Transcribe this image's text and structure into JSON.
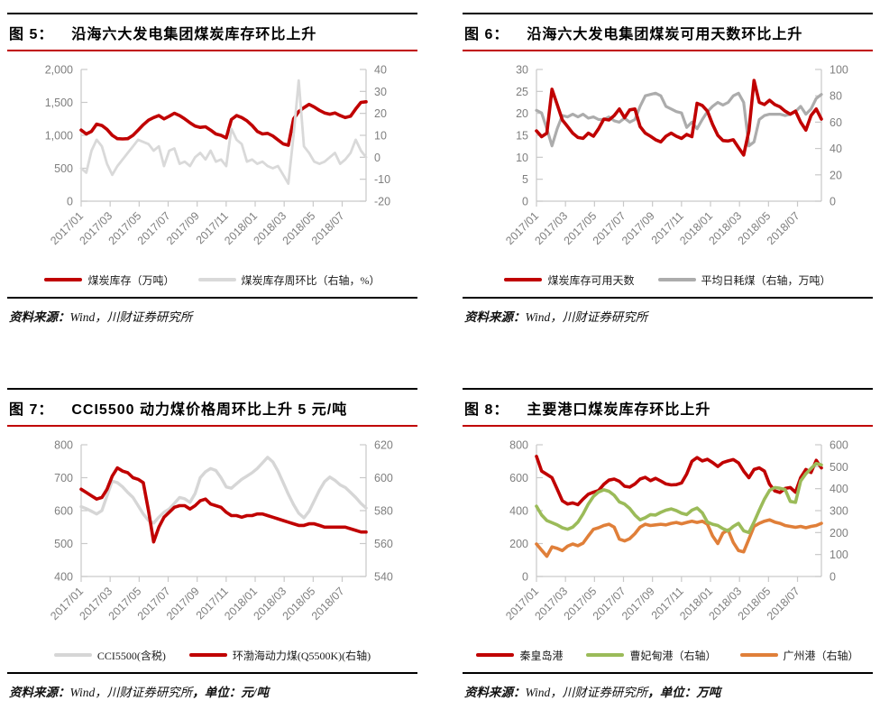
{
  "style": {
    "accent_red": "#c00000",
    "axis_color": "#c9c9c9",
    "tick_text_color": "#7f7f7f",
    "rule_black": "#000000"
  },
  "chart_data": [
    {
      "type": "line",
      "figure_label": "图 5：",
      "title": "沿海六大发电集团煤炭库存环比上升",
      "source_label": "资料来源：",
      "source_text": "Wind，川财证券研究所",
      "unit_text": "",
      "x_ticks": [
        "2017/01",
        "2017/03",
        "2017/05",
        "2017/07",
        "2017/09",
        "2017/11",
        "2018/01",
        "2018/03",
        "2018/05",
        "2018/07"
      ],
      "left_axis": {
        "min": 0,
        "max": 2000,
        "tick_labels": [
          "0",
          "500",
          "1,000",
          "1,500",
          "2,000"
        ]
      },
      "right_axis": {
        "min": -20,
        "max": 40,
        "tick_labels": [
          "-20",
          "-10",
          "0",
          "10",
          "20",
          "30",
          "40"
        ]
      },
      "draw_order": [
        0,
        1
      ],
      "series": [
        {
          "name": "煤炭库存（万吨）",
          "axis": "left",
          "color": "#c00000",
          "width": 3.6,
          "values": [
            1080,
            1020,
            1060,
            1170,
            1150,
            1090,
            1000,
            950,
            945,
            950,
            1000,
            1080,
            1160,
            1230,
            1270,
            1300,
            1250,
            1290,
            1335,
            1300,
            1250,
            1190,
            1140,
            1120,
            1130,
            1080,
            1020,
            1000,
            960,
            1240,
            1300,
            1270,
            1220,
            1150,
            1060,
            1020,
            1030,
            990,
            930,
            870,
            850,
            1250,
            1360,
            1420,
            1470,
            1430,
            1380,
            1340,
            1320,
            1340,
            1300,
            1270,
            1290,
            1400,
            1500,
            1510
          ]
        },
        {
          "name": "煤炭库存周环比（右轴，%）",
          "axis": "right",
          "color": "#d9d9d9",
          "width": 2.8,
          "values": [
            -5,
            -7,
            3,
            8,
            5,
            -3,
            -8,
            -4,
            -1,
            2,
            5,
            8,
            7,
            6,
            3,
            5,
            -4,
            3,
            4,
            -3,
            -2,
            -4,
            0,
            2,
            -1,
            3,
            -2,
            -1,
            -4,
            13,
            8,
            6,
            -2,
            -1,
            -3,
            -2,
            -4,
            -5,
            -4,
            -8,
            -12,
            10,
            35,
            5,
            2,
            -2,
            -3,
            -2,
            0,
            2,
            -3,
            -1,
            2,
            8,
            3,
            0
          ]
        }
      ]
    },
    {
      "type": "line",
      "figure_label": "图 6：",
      "title": "沿海六大发电集团煤炭可用天数环比上升",
      "source_label": "资料来源：",
      "source_text": "Wind，川财证券研究所",
      "unit_text": "",
      "x_ticks": [
        "2017/01",
        "2017/03",
        "2017/05",
        "2017/07",
        "2017/09",
        "2017/11",
        "2018/01",
        "2018/03",
        "2018/05",
        "2018/07"
      ],
      "left_axis": {
        "min": 0,
        "max": 30,
        "tick_labels": [
          "0",
          "5",
          "10",
          "15",
          "20",
          "25",
          "30"
        ]
      },
      "right_axis": {
        "min": 0,
        "max": 100,
        "tick_labels": [
          "0",
          "20",
          "40",
          "60",
          "80",
          "100"
        ]
      },
      "draw_order": [
        1,
        0
      ],
      "series": [
        {
          "name": "煤炭库存可用天数",
          "axis": "left",
          "color": "#c00000",
          "width": 3.6,
          "values": [
            16,
            14.7,
            15.5,
            25.5,
            22,
            18.5,
            17,
            15.5,
            14.5,
            14.3,
            15.5,
            14.8,
            16.5,
            18.7,
            18.5,
            19.5,
            21,
            19,
            20.8,
            21,
            17,
            15.5,
            14.8,
            14,
            13.5,
            14.8,
            15.5,
            14.8,
            14.3,
            15.2,
            14.7,
            22.3,
            21.8,
            20.5,
            17.5,
            15,
            13.8,
            13.7,
            14,
            12.2,
            10.5,
            16,
            27.5,
            22.5,
            22,
            23,
            22,
            21.5,
            20.5,
            19.8,
            20.5,
            18,
            16.2,
            19.5,
            21,
            18.7
          ]
        },
        {
          "name": "平均日耗煤（右轴，万吨）",
          "axis": "right",
          "color": "#acacac",
          "width": 3.2,
          "values": [
            69,
            67,
            55,
            42,
            55,
            65,
            64,
            66,
            64,
            66,
            63,
            64,
            62,
            62,
            64,
            61,
            60,
            63,
            60,
            62,
            72,
            80,
            81,
            82,
            80,
            72,
            70,
            68,
            67,
            56,
            60,
            55,
            62,
            68,
            72,
            75,
            73,
            75,
            80,
            82,
            75,
            42,
            45,
            62,
            65,
            66,
            66,
            66,
            65,
            66,
            68,
            72,
            66,
            70,
            78,
            81
          ]
        }
      ]
    },
    {
      "type": "line",
      "figure_label": "图 7：",
      "title": "CCI5500 动力煤价格周环比上升 5 元/吨",
      "source_label": "资料来源：",
      "source_text": "Wind，川财证券研究所",
      "unit_text": "，单位：元/吨",
      "x_ticks": [
        "2017/01",
        "2017/03",
        "2017/05",
        "2017/07",
        "2017/09",
        "2017/11",
        "2018/01",
        "2018/03",
        "2018/05",
        "2018/07"
      ],
      "left_axis": {
        "min": 400,
        "max": 800,
        "tick_labels": [
          "400",
          "500",
          "600",
          "700",
          "800"
        ]
      },
      "right_axis": {
        "min": 540,
        "max": 620,
        "tick_labels": [
          "540",
          "560",
          "580",
          "600",
          "620"
        ]
      },
      "draw_order": [
        0,
        1
      ],
      "series": [
        {
          "name": "CCI5500(含税)",
          "axis": "left",
          "color": "#d6d6d6",
          "width": 3.4,
          "values": [
            612,
            606,
            598,
            590,
            600,
            645,
            690,
            685,
            672,
            655,
            640,
            615,
            590,
            570,
            562,
            580,
            595,
            605,
            622,
            640,
            636,
            625,
            652,
            700,
            718,
            728,
            722,
            700,
            672,
            668,
            682,
            695,
            705,
            715,
            728,
            745,
            762,
            748,
            720,
            685,
            650,
            618,
            592,
            578,
            598,
            630,
            662,
            688,
            702,
            692,
            678,
            670,
            655,
            640,
            622,
            608
          ]
        },
        {
          "name": "环渤海动力煤(Q5500K)(右轴)",
          "axis": "right",
          "color": "#c00000",
          "width": 3.6,
          "values": [
            593,
            591,
            589,
            587,
            588,
            593,
            601,
            606,
            604,
            603,
            600,
            599,
            597,
            580,
            561,
            570,
            576,
            579,
            582,
            583,
            583,
            581,
            583,
            586,
            587,
            584,
            583,
            582,
            579,
            577,
            577,
            576,
            577,
            577,
            578,
            578,
            577,
            576,
            575,
            574,
            573,
            572,
            571,
            571,
            572,
            572,
            571,
            570,
            570,
            570,
            570,
            570,
            569,
            568,
            567,
            567
          ]
        }
      ]
    },
    {
      "type": "line",
      "figure_label": "图 8：",
      "title": "主要港口煤炭库存环比上升",
      "source_label": "资料来源：",
      "source_text": "Wind，川财证券研究所",
      "unit_text": "，单位：万吨",
      "x_ticks": [
        "2017/01",
        "2017/03",
        "2017/05",
        "2017/07",
        "2017/09",
        "2017/11",
        "2018/01",
        "2018/03",
        "2018/05",
        "2018/07"
      ],
      "left_axis": {
        "min": 0,
        "max": 800,
        "tick_labels": [
          "0",
          "200",
          "400",
          "600",
          "800"
        ]
      },
      "right_axis": {
        "min": 0,
        "max": 600,
        "tick_labels": [
          "0",
          "100",
          "200",
          "300",
          "400",
          "500",
          "600"
        ]
      },
      "draw_order": [
        0,
        2,
        1
      ],
      "series": [
        {
          "name": "秦皇岛港",
          "axis": "left",
          "color": "#c00000",
          "width": 3.6,
          "values": [
            730,
            640,
            620,
            600,
            530,
            460,
            440,
            447,
            436,
            470,
            500,
            512,
            522,
            560,
            585,
            592,
            578,
            548,
            543,
            562,
            592,
            602,
            582,
            596,
            580,
            562,
            556,
            558,
            568,
            622,
            700,
            722,
            702,
            712,
            692,
            668,
            692,
            702,
            710,
            690,
            640,
            600,
            650,
            660,
            640,
            560,
            520,
            510,
            535,
            540,
            512,
            600,
            650,
            632,
            705,
            660
          ]
        },
        {
          "name": "曹妃甸港（右轴）",
          "axis": "right",
          "color": "#9bbb59",
          "width": 3.6,
          "values": [
            320,
            280,
            255,
            245,
            235,
            222,
            215,
            225,
            248,
            285,
            330,
            365,
            385,
            395,
            388,
            370,
            340,
            330,
            310,
            280,
            258,
            268,
            282,
            280,
            292,
            302,
            308,
            300,
            288,
            282,
            302,
            312,
            290,
            248,
            238,
            232,
            218,
            208,
            228,
            242,
            208,
            200,
            248,
            302,
            352,
            392,
            405,
            402,
            396,
            342,
            338,
            435,
            468,
            492,
            515,
            508
          ]
        },
        {
          "name": "广州港（右轴）",
          "axis": "right",
          "color": "#e07f39",
          "width": 3.6,
          "values": [
            148,
            120,
            92,
            135,
            128,
            118,
            138,
            148,
            140,
            152,
            185,
            215,
            222,
            232,
            238,
            225,
            170,
            162,
            172,
            195,
            225,
            238,
            232,
            235,
            238,
            235,
            242,
            246,
            240,
            246,
            252,
            246,
            252,
            238,
            185,
            150,
            198,
            212,
            155,
            118,
            112,
            170,
            228,
            242,
            252,
            258,
            248,
            242,
            232,
            228,
            224,
            228,
            222,
            228,
            232,
            242
          ]
        }
      ]
    }
  ]
}
